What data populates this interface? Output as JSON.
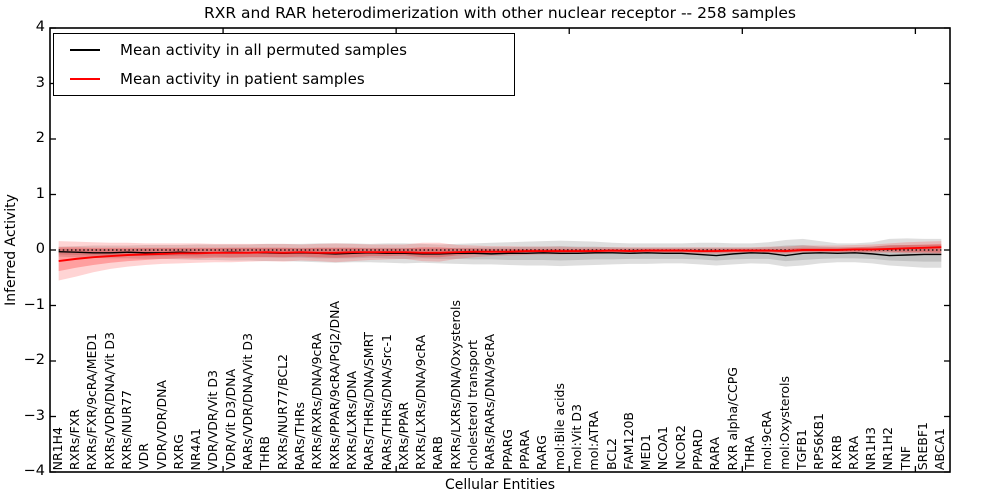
{
  "chart_data": {
    "type": "line",
    "title": "RXR and RAR heterodimerization with other nuclear receptor -- 258 samples",
    "xlabel": "Cellular Entities",
    "ylabel": "Inferred Activity",
    "ylim": [
      -4,
      4
    ],
    "grid": false,
    "legend_position": "upper-left",
    "y_ticks": [
      {
        "label": "4",
        "value": 4
      },
      {
        "label": "3",
        "value": 3
      },
      {
        "label": "2",
        "value": 2
      },
      {
        "label": "1",
        "value": 1
      },
      {
        "label": "0",
        "value": 0
      },
      {
        "label": "−1",
        "value": -1
      },
      {
        "label": "−2",
        "value": -2
      },
      {
        "label": "−3",
        "value": -3
      },
      {
        "label": "−4",
        "value": -4
      }
    ],
    "x_tick_positions": [
      10,
      20,
      30,
      40,
      50
    ],
    "categories": [
      "NR1H4",
      "RXRs/FXR",
      "RXRs/FXR/9cRA/MED1",
      "RXRs/VDR/DNA/Vit D3",
      "RXRs/NUR77",
      "VDR",
      "VDR/VDR/DNA",
      "RXRG",
      "NR4A1",
      "VDR/VDR/Vit D3",
      "VDR/Vit D3/DNA",
      "RARs/VDR/DNA/Vit D3",
      "THRB",
      "RXRs/NUR77/BCL2",
      "RARs/THRs",
      "RXRs/RXRs/DNA/9cRA",
      "RXRs/PPAR/9cRA/PGJ2/DNA",
      "RXRs/LXRs/DNA",
      "RARs/THRs/DNA/SMRT",
      "RARs/THRs/DNA/Src-1",
      "RXRs/PPAR",
      "RXRs/LXRs/DNA/9cRA",
      "RARB",
      "RXRs/LXRs/DNA/Oxysterols",
      "cholesterol transport",
      "RARs/RARs/DNA/9cRA",
      "PPARG",
      "PPARA",
      "RARG",
      "mol:Bile acids",
      "mol:Vit D3",
      "mol:ATRA",
      "BCL2",
      "FAM120B",
      "MED1",
      "NCOA1",
      "NCOR2",
      "PPARD",
      "RARA",
      "RXR alpha/CCPG",
      "THRA",
      "mol:9cRA",
      "mol:Oxysterols",
      "TGFB1",
      "RPS6KB1",
      "RXRB",
      "RXRA",
      "NR1H3",
      "NR1H2",
      "TNF",
      "SREBF1",
      "ABCA1"
    ],
    "series": [
      {
        "name": "Mean activity in all permuted samples",
        "color": "#000000",
        "values": [
          -0.03,
          -0.04,
          -0.05,
          -0.05,
          -0.04,
          -0.05,
          -0.05,
          -0.04,
          -0.05,
          -0.05,
          -0.04,
          -0.05,
          -0.05,
          -0.06,
          -0.05,
          -0.06,
          -0.07,
          -0.06,
          -0.05,
          -0.06,
          -0.06,
          -0.07,
          -0.07,
          -0.06,
          -0.06,
          -0.07,
          -0.06,
          -0.06,
          -0.05,
          -0.06,
          -0.06,
          -0.05,
          -0.05,
          -0.06,
          -0.05,
          -0.06,
          -0.06,
          -0.08,
          -0.1,
          -0.07,
          -0.05,
          -0.06,
          -0.1,
          -0.06,
          -0.05,
          -0.06,
          -0.05,
          -0.07,
          -0.1,
          -0.09,
          -0.08,
          -0.08
        ]
      },
      {
        "name": "Mean activity in patient samples",
        "color": "#ff0000",
        "values": [
          -0.2,
          -0.16,
          -0.13,
          -0.11,
          -0.09,
          -0.08,
          -0.07,
          -0.06,
          -0.06,
          -0.05,
          -0.05,
          -0.05,
          -0.04,
          -0.05,
          -0.04,
          -0.05,
          -0.05,
          -0.04,
          -0.04,
          -0.04,
          -0.04,
          -0.05,
          -0.05,
          -0.04,
          -0.03,
          -0.03,
          -0.03,
          -0.02,
          -0.02,
          -0.02,
          -0.02,
          -0.02,
          -0.01,
          -0.02,
          -0.01,
          -0.01,
          -0.01,
          -0.02,
          -0.02,
          -0.01,
          -0.01,
          -0.01,
          -0.02,
          0.0,
          0.0,
          0.0,
          0.01,
          0.01,
          0.02,
          0.03,
          0.04,
          0.05
        ]
      }
    ],
    "bands": [
      {
        "name": "permuted-outer",
        "color": "#000000",
        "opacity": 0.13,
        "lo": [
          -0.12,
          -0.13,
          -0.14,
          -0.15,
          -0.15,
          -0.16,
          -0.16,
          -0.17,
          -0.18,
          -0.18,
          -0.19,
          -0.19,
          -0.2,
          -0.2,
          -0.21,
          -0.22,
          -0.23,
          -0.22,
          -0.22,
          -0.23,
          -0.24,
          -0.23,
          -0.24,
          -0.25,
          -0.26,
          -0.26,
          -0.27,
          -0.28,
          -0.28,
          -0.29,
          -0.28,
          -0.27,
          -0.26,
          -0.25,
          -0.25,
          -0.24,
          -0.24,
          -0.26,
          -0.28,
          -0.26,
          -0.24,
          -0.25,
          -0.3,
          -0.28,
          -0.24,
          -0.22,
          -0.22,
          -0.24,
          -0.28,
          -0.3,
          -0.32,
          -0.32
        ],
        "hi": [
          0.06,
          0.07,
          0.08,
          0.08,
          0.08,
          0.09,
          0.09,
          0.09,
          0.1,
          0.1,
          0.1,
          0.1,
          0.11,
          0.11,
          0.11,
          0.12,
          0.12,
          0.12,
          0.11,
          0.12,
          0.12,
          0.11,
          0.1,
          0.11,
          0.12,
          0.13,
          0.14,
          0.15,
          0.16,
          0.17,
          0.16,
          0.15,
          0.13,
          0.12,
          0.12,
          0.12,
          0.12,
          0.13,
          0.13,
          0.12,
          0.12,
          0.14,
          0.18,
          0.2,
          0.16,
          0.12,
          0.12,
          0.14,
          0.2,
          0.21,
          0.2,
          0.2
        ]
      },
      {
        "name": "permuted-inner",
        "color": "#000000",
        "opacity": 0.12,
        "lo": [
          -0.08,
          -0.09,
          -0.1,
          -0.1,
          -0.1,
          -0.11,
          -0.11,
          -0.11,
          -0.12,
          -0.12,
          -0.13,
          -0.13,
          -0.13,
          -0.14,
          -0.14,
          -0.15,
          -0.15,
          -0.15,
          -0.14,
          -0.15,
          -0.16,
          -0.15,
          -0.16,
          -0.16,
          -0.17,
          -0.17,
          -0.18,
          -0.18,
          -0.18,
          -0.19,
          -0.18,
          -0.17,
          -0.17,
          -0.16,
          -0.16,
          -0.16,
          -0.16,
          -0.17,
          -0.19,
          -0.17,
          -0.16,
          -0.16,
          -0.2,
          -0.18,
          -0.16,
          -0.15,
          -0.15,
          -0.16,
          -0.19,
          -0.2,
          -0.21,
          -0.21
        ],
        "hi": [
          0.02,
          0.02,
          0.02,
          0.02,
          0.02,
          0.03,
          0.03,
          0.03,
          0.03,
          0.03,
          0.04,
          0.04,
          0.04,
          0.04,
          0.04,
          0.04,
          0.04,
          0.04,
          0.04,
          0.04,
          0.04,
          0.03,
          0.03,
          0.04,
          0.04,
          0.05,
          0.05,
          0.06,
          0.06,
          0.07,
          0.06,
          0.06,
          0.05,
          0.04,
          0.04,
          0.04,
          0.04,
          0.04,
          0.04,
          0.04,
          0.04,
          0.05,
          0.08,
          0.09,
          0.06,
          0.05,
          0.05,
          0.06,
          0.09,
          0.09,
          0.09,
          0.09
        ]
      },
      {
        "name": "patient-outer",
        "color": "#ff0000",
        "opacity": 0.17,
        "lo": [
          -0.55,
          -0.48,
          -0.4,
          -0.34,
          -0.3,
          -0.27,
          -0.25,
          -0.24,
          -0.23,
          -0.22,
          -0.22,
          -0.21,
          -0.2,
          -0.21,
          -0.19,
          -0.2,
          -0.22,
          -0.2,
          -0.18,
          -0.17,
          -0.16,
          -0.2,
          -0.21,
          -0.16,
          -0.13,
          -0.11,
          -0.1,
          -0.09,
          -0.08,
          -0.08,
          -0.07,
          -0.07,
          -0.06,
          -0.07,
          -0.06,
          -0.06,
          -0.06,
          -0.07,
          -0.07,
          -0.06,
          -0.06,
          -0.06,
          -0.07,
          -0.05,
          -0.05,
          -0.05,
          -0.05,
          -0.05,
          -0.05,
          -0.06,
          -0.06,
          -0.07
        ],
        "hi": [
          0.16,
          0.15,
          0.14,
          0.13,
          0.13,
          0.12,
          0.12,
          0.12,
          0.12,
          0.11,
          0.11,
          0.11,
          0.11,
          0.11,
          0.1,
          0.11,
          0.12,
          0.11,
          0.1,
          0.1,
          0.1,
          0.13,
          0.13,
          0.09,
          0.08,
          0.07,
          0.07,
          0.06,
          0.06,
          0.06,
          0.05,
          0.05,
          0.05,
          0.05,
          0.05,
          0.05,
          0.05,
          0.05,
          0.05,
          0.05,
          0.05,
          0.06,
          0.06,
          0.08,
          0.08,
          0.08,
          0.09,
          0.1,
          0.12,
          0.14,
          0.15,
          0.16
        ]
      },
      {
        "name": "patient-inner",
        "color": "#ff0000",
        "opacity": 0.25,
        "lo": [
          -0.38,
          -0.32,
          -0.27,
          -0.23,
          -0.2,
          -0.18,
          -0.16,
          -0.15,
          -0.15,
          -0.14,
          -0.14,
          -0.13,
          -0.13,
          -0.13,
          -0.12,
          -0.13,
          -0.14,
          -0.13,
          -0.11,
          -0.11,
          -0.1,
          -0.13,
          -0.13,
          -0.1,
          -0.08,
          -0.07,
          -0.07,
          -0.06,
          -0.05,
          -0.05,
          -0.05,
          -0.04,
          -0.04,
          -0.04,
          -0.04,
          -0.04,
          -0.04,
          -0.05,
          -0.05,
          -0.04,
          -0.04,
          -0.04,
          -0.05,
          -0.03,
          -0.03,
          -0.03,
          -0.03,
          -0.03,
          -0.03,
          -0.04,
          -0.04,
          -0.05
        ],
        "hi": [
          0.05,
          0.05,
          0.04,
          0.04,
          0.04,
          0.04,
          0.04,
          0.04,
          0.04,
          0.04,
          0.04,
          0.04,
          0.04,
          0.04,
          0.03,
          0.04,
          0.04,
          0.04,
          0.03,
          0.03,
          0.03,
          0.05,
          0.05,
          0.03,
          0.03,
          0.02,
          0.02,
          0.02,
          0.02,
          0.02,
          0.02,
          0.02,
          0.02,
          0.02,
          0.02,
          0.02,
          0.02,
          0.02,
          0.02,
          0.02,
          0.02,
          0.02,
          0.02,
          0.04,
          0.04,
          0.04,
          0.05,
          0.06,
          0.08,
          0.09,
          0.1,
          0.11
        ]
      }
    ],
    "zero_line": {
      "value": 0,
      "style": "dotted",
      "color": "#000000"
    }
  }
}
